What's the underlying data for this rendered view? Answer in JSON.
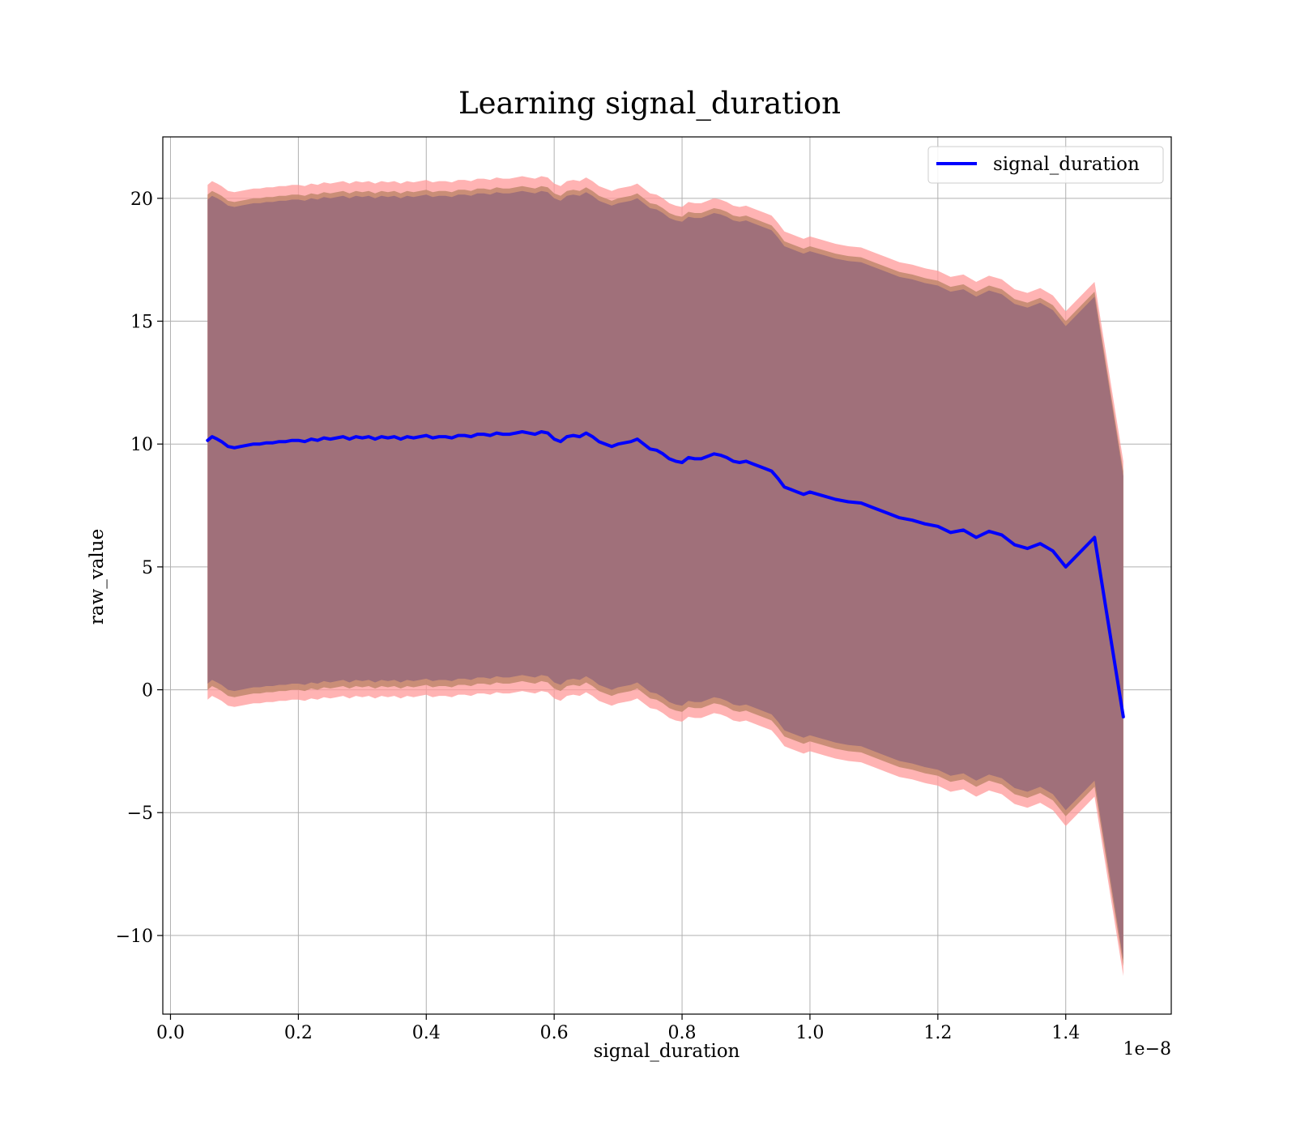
{
  "chart_data": {
    "type": "line",
    "title": "Learning signal_duration",
    "xlabel": "signal_duration",
    "ylabel": "raw_value",
    "x_scale_label": "1e−8",
    "x_ticks": [
      0.0,
      0.2,
      0.4,
      0.6,
      0.8,
      1.0,
      1.2,
      1.4
    ],
    "x_tick_labels": [
      "0.0",
      "0.2",
      "0.4",
      "0.6",
      "0.8",
      "1.0",
      "1.2",
      "1.4"
    ],
    "y_ticks": [
      -10,
      -5,
      0,
      5,
      10,
      15,
      20
    ],
    "y_tick_labels": [
      "−10",
      "−5",
      "0",
      "5",
      "10",
      "15",
      "20"
    ],
    "xlim": [
      -0.012,
      1.565
    ],
    "ylim": [
      -13.2,
      22.5
    ],
    "grid": true,
    "legend_position": "top-right",
    "colors": {
      "line": "#0000ff",
      "band_outer": "#ff9999",
      "band_mid": "#c48a70",
      "band_inner": "#a0707a",
      "grid": "#b0b0b0"
    },
    "series": [
      {
        "name": "signal_duration",
        "x": [
          0.058,
          0.065,
          0.073,
          0.08,
          0.09,
          0.1,
          0.11,
          0.12,
          0.13,
          0.14,
          0.15,
          0.16,
          0.17,
          0.18,
          0.19,
          0.2,
          0.21,
          0.22,
          0.23,
          0.24,
          0.25,
          0.26,
          0.27,
          0.28,
          0.29,
          0.3,
          0.31,
          0.32,
          0.33,
          0.34,
          0.35,
          0.36,
          0.37,
          0.38,
          0.39,
          0.4,
          0.41,
          0.42,
          0.43,
          0.44,
          0.45,
          0.46,
          0.47,
          0.48,
          0.49,
          0.5,
          0.51,
          0.52,
          0.53,
          0.54,
          0.55,
          0.56,
          0.57,
          0.58,
          0.59,
          0.6,
          0.61,
          0.62,
          0.63,
          0.64,
          0.65,
          0.66,
          0.67,
          0.68,
          0.69,
          0.7,
          0.71,
          0.72,
          0.73,
          0.74,
          0.75,
          0.76,
          0.77,
          0.78,
          0.79,
          0.8,
          0.81,
          0.82,
          0.83,
          0.84,
          0.85,
          0.86,
          0.87,
          0.88,
          0.89,
          0.9,
          0.91,
          0.92,
          0.93,
          0.94,
          0.95,
          0.96,
          0.97,
          0.98,
          0.99,
          1.0,
          1.02,
          1.04,
          1.06,
          1.08,
          1.1,
          1.12,
          1.14,
          1.16,
          1.18,
          1.2,
          1.22,
          1.24,
          1.26,
          1.28,
          1.3,
          1.32,
          1.34,
          1.36,
          1.38,
          1.4,
          1.445,
          1.49
        ],
        "y": [
          10.15,
          10.3,
          10.2,
          10.1,
          9.9,
          9.85,
          9.9,
          9.95,
          10.0,
          10.0,
          10.05,
          10.05,
          10.1,
          10.1,
          10.15,
          10.15,
          10.1,
          10.2,
          10.15,
          10.25,
          10.2,
          10.25,
          10.3,
          10.2,
          10.3,
          10.25,
          10.3,
          10.2,
          10.3,
          10.25,
          10.3,
          10.2,
          10.3,
          10.25,
          10.3,
          10.35,
          10.25,
          10.3,
          10.3,
          10.25,
          10.35,
          10.35,
          10.3,
          10.4,
          10.4,
          10.35,
          10.45,
          10.4,
          10.4,
          10.45,
          10.5,
          10.45,
          10.4,
          10.5,
          10.45,
          10.2,
          10.1,
          10.3,
          10.35,
          10.3,
          10.45,
          10.3,
          10.1,
          10.0,
          9.9,
          10.0,
          10.05,
          10.1,
          10.2,
          10.0,
          9.8,
          9.75,
          9.6,
          9.4,
          9.3,
          9.25,
          9.45,
          9.4,
          9.4,
          9.5,
          9.6,
          9.55,
          9.45,
          9.3,
          9.25,
          9.3,
          9.2,
          9.1,
          9.0,
          8.9,
          8.6,
          8.25,
          8.15,
          8.05,
          7.95,
          8.05,
          7.9,
          7.75,
          7.65,
          7.6,
          7.4,
          7.2,
          7.0,
          6.9,
          6.75,
          6.65,
          6.4,
          6.5,
          6.2,
          6.45,
          6.3,
          5.9,
          5.75,
          5.95,
          5.65,
          5.0,
          6.2,
          -1.1
        ]
      }
    ],
    "bands": [
      {
        "offset_upper": 10.4,
        "offset_lower": 10.55
      },
      {
        "offset_upper": 10.0,
        "offset_lower": 10.15
      },
      {
        "offset_upper": 9.8,
        "offset_lower": 9.9
      }
    ]
  },
  "legend": {
    "label": "signal_duration"
  }
}
